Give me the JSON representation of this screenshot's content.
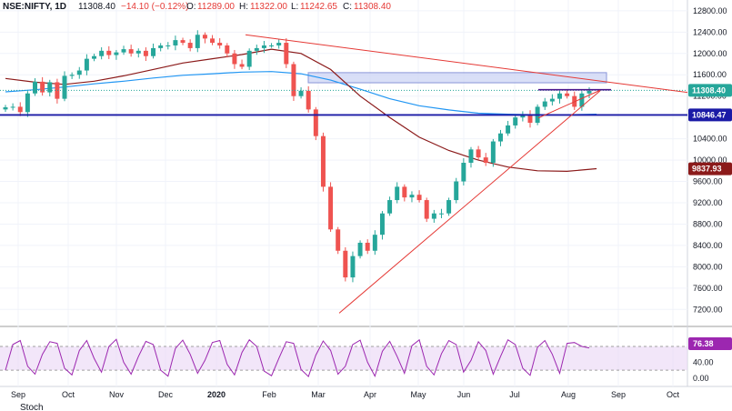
{
  "header": {
    "symbol": "NSE:NIFTY, 1D",
    "last": "11308.40",
    "change": "−14.10 (−0.12%)",
    "o_label": "O:",
    "o": "11289.00",
    "h_label": "H:",
    "h": "11322.00",
    "l_label": "L:",
    "l": "11242.65",
    "c_label": "C:",
    "c": "11308.40"
  },
  "indicator": {
    "label": "Stoch",
    "value": "76.38"
  },
  "colors": {
    "up": "#26a69a",
    "down": "#ef5350",
    "ma_long": "#2196f3",
    "ma_mid": "#8b1a1a",
    "trend": "#e53935",
    "support": "#1a1aa6",
    "zone": "#c9d2f3",
    "osc": "#9c27b0",
    "osc_band": "#ead6f5"
  },
  "chart_data": [
    {
      "type": "candlestick",
      "ylim": [
        7000,
        12900
      ],
      "y_ticks": [
        7200,
        7600,
        8000,
        8400,
        8800,
        9200,
        9600,
        10000,
        10400,
        10800,
        11200,
        11600,
        12000,
        12400,
        12800
      ],
      "y_tick_labels": [
        "7200.00",
        "7600.00",
        "8000.00",
        "8400.00",
        "8800.00",
        "9200.00",
        "9600.00",
        "10000.00",
        "10400.00",
        "10800.00",
        "11200.00",
        "11600.00",
        "12000.00",
        "12400.00",
        "12800.00"
      ],
      "x_tick_labels": [
        "Sep",
        "Oct",
        "Nov",
        "Dec",
        "2020",
        "Feb",
        "Mar",
        "Apr",
        "May",
        "Jun",
        "Jul",
        "Aug",
        "Sep",
        "Oct"
      ],
      "price_labels": [
        {
          "value": 11308.4,
          "text": "11308.40",
          "color": "#26a69a"
        },
        {
          "value": 10846.47,
          "text": "10846.47",
          "color": "#1a1aa6"
        },
        {
          "value": 9837.93,
          "text": "9837.93",
          "color": "#8b1a1a"
        }
      ],
      "series": [
        {
          "name": "NIFTY",
          "kind": "ohlc",
          "close": [
            10990,
            11000,
            10900,
            11250,
            11470,
            11270,
            11460,
            11150,
            11580,
            11600,
            11680,
            11900,
            11950,
            12050,
            11970,
            12020,
            12080,
            12000,
            12050,
            11950,
            12100,
            12150,
            12150,
            12250,
            12200,
            12100,
            12350,
            12280,
            12200,
            12150,
            12000,
            11800,
            11750,
            12050,
            12100,
            12150,
            12150,
            12200,
            11800,
            11200,
            11300,
            10950,
            10450,
            9500,
            8700,
            8300,
            7800,
            8200,
            8450,
            8300,
            8600,
            9000,
            9250,
            9500,
            9300,
            9350,
            9250,
            8900,
            9000,
            9000,
            9250,
            9600,
            9950,
            10200,
            10050,
            9950,
            10350,
            10500,
            10650,
            10800,
            10850,
            10700,
            11000,
            11100,
            11150,
            11250,
            11200,
            11000,
            11250,
            11300
          ]
        },
        {
          "name": "",
          "kind": "line",
          "color": "#2196f3",
          "x": [
            0,
            4,
            8,
            12,
            16,
            20,
            24,
            28,
            32,
            36,
            40,
            44,
            48,
            52,
            56,
            60,
            64,
            68,
            72,
            76,
            80
          ],
          "values": [
            11280,
            11320,
            11370,
            11430,
            11480,
            11540,
            11590,
            11620,
            11650,
            11660,
            11620,
            11500,
            11330,
            11150,
            11020,
            10940,
            10880,
            10860,
            10850,
            10850,
            10860
          ]
        },
        {
          "name": "",
          "kind": "line",
          "color": "#8b1a1a",
          "x": [
            0,
            4,
            8,
            12,
            16,
            20,
            24,
            28,
            32,
            36,
            40,
            44,
            48,
            52,
            56,
            60,
            64,
            68,
            72,
            76,
            80
          ],
          "values": [
            11530,
            11460,
            11420,
            11480,
            11580,
            11700,
            11820,
            11900,
            11980,
            12080,
            12000,
            11700,
            11200,
            10800,
            10430,
            10180,
            10000,
            9870,
            9800,
            9790,
            9840
          ]
        }
      ]
    },
    {
      "type": "line",
      "ylabel": "Stoch",
      "ylim": [
        -5,
        110
      ],
      "y_ticks": [
        0,
        40,
        80
      ],
      "y_tick_labels": [
        "0.00",
        "40.00",
        "80.00"
      ],
      "series": [
        {
          "name": "Stoch",
          "values": [
            20,
            85,
            95,
            30,
            10,
            60,
            92,
            88,
            25,
            8,
            70,
            95,
            50,
            15,
            80,
            98,
            40,
            10,
            55,
            93,
            85,
            20,
            5,
            75,
            96,
            60,
            12,
            45,
            90,
            95,
            35,
            8,
            65,
            97,
            80,
            18,
            6,
            50,
            92,
            88,
            22,
            4,
            58,
            94,
            70,
            10,
            30,
            85,
            96,
            40,
            5,
            68,
            93,
            55,
            12,
            82,
            97,
            30,
            8,
            62,
            95,
            85,
            15,
            45,
            92,
            70,
            10,
            55,
            97,
            85,
            25,
            7,
            78,
            95,
            60,
            12,
            88,
            90,
            80,
            76.38
          ]
        }
      ]
    }
  ]
}
